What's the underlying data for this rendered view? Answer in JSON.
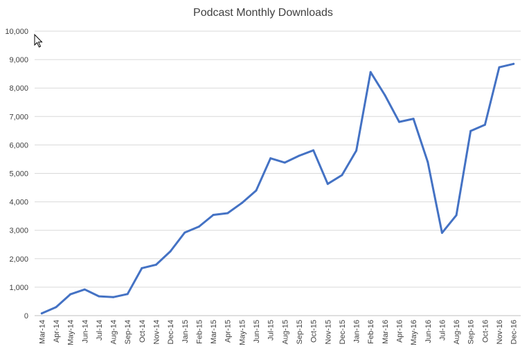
{
  "chart_data": {
    "type": "line",
    "title": "Podcast Monthly Downloads",
    "xlabel": "",
    "ylabel": "",
    "ylim": [
      0,
      10000
    ],
    "yticks": [
      0,
      1000,
      2000,
      3000,
      4000,
      5000,
      6000,
      7000,
      8000,
      9000,
      10000
    ],
    "ytick_labels": [
      "0",
      "1,000",
      "2,000",
      "3,000",
      "4,000",
      "5,000",
      "6,000",
      "7,000",
      "8,000",
      "9,000",
      "10,000"
    ],
    "grid": true,
    "legend": "none",
    "categories": [
      "Mar-14",
      "Apr-14",
      "May-14",
      "Jun-14",
      "Jul-14",
      "Aug-14",
      "Sep-14",
      "Oct-14",
      "Nov-14",
      "Dec-14",
      "Jan-15",
      "Feb-15",
      "Mar-15",
      "Apr-15",
      "May-15",
      "Jun-15",
      "Jul-15",
      "Aug-15",
      "Sep-15",
      "Oct-15",
      "Nov-15",
      "Dec-15",
      "Jan-16",
      "Feb-16",
      "Mar-16",
      "Apr-16",
      "May-16",
      "Jun-16",
      "Jul-16",
      "Aug-16",
      "Sep-16",
      "Oct-16",
      "Nov-16",
      "Dec-16"
    ],
    "series": [
      {
        "color": "#4472c4",
        "values": [
          80,
          300,
          750,
          920,
          680,
          650,
          760,
          1670,
          1790,
          2260,
          2920,
          3130,
          3540,
          3600,
          3960,
          4400,
          5530,
          5380,
          5620,
          5810,
          4630,
          4940,
          5800,
          8560,
          7750,
          6810,
          6920,
          5400,
          2910,
          3530,
          6490,
          6710,
          8730,
          8850
        ]
      }
    ]
  },
  "cursor": {
    "icon": "mouse-pointer-icon"
  }
}
